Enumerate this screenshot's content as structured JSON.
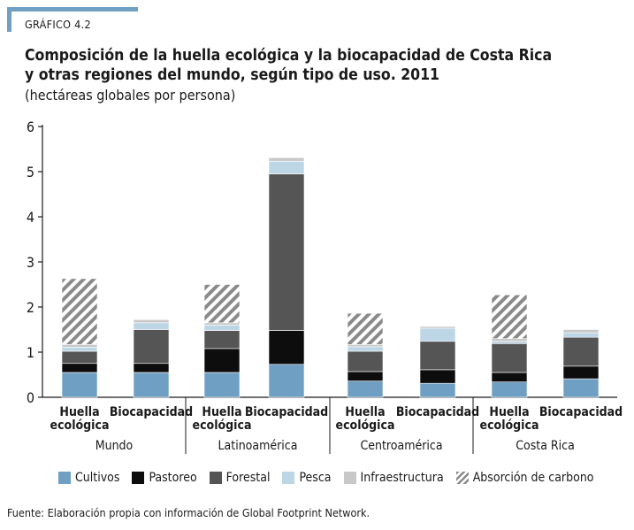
{
  "header": {
    "kicker": "GRÁFICO 4.2",
    "title_line1": "Composición de la huella ecológica y la biocapacidad de Costa Rica",
    "title_line2": "y otras regiones del mundo, según tipo de uso. 2011",
    "subtitle": "(hectáreas globales por persona)"
  },
  "colors": {
    "Cultivos": "#6f9fc3",
    "Pastoreo": "#0d0d0d",
    "Forestal": "#555555",
    "Pesca": "#bcd6e6",
    "Infraestructura": "#c8c8c8",
    "Absorción de carbono": "hatch"
  },
  "chart_data": {
    "type": "bar",
    "stacked": true,
    "title": "Composición de la huella ecológica y la biocapacidad de Costa Rica y otras regiones del mundo, según tipo de uso. 2011",
    "ylabel": "(hectáreas globales por persona)",
    "ylim": [
      0,
      6
    ],
    "yticks": [
      "0",
      "1",
      "2",
      "3",
      "4",
      "5",
      "6"
    ],
    "grid": false,
    "legend": "bottom",
    "groups": [
      "Mundo",
      "Latinoamérica",
      "Centroamérica",
      "Costa Rica"
    ],
    "bar_labels": [
      "Huella ecológica",
      "Biocapacidad"
    ],
    "categories": [
      "Mundo - Huella ecológica",
      "Mundo - Biocapacidad",
      "Latinoamérica - Huella ecológica",
      "Latinoamérica - Biocapacidad",
      "Centroamérica - Huella ecológica",
      "Centroamérica - Biocapacidad",
      "Costa Rica - Huella ecológica",
      "Costa Rica - Biocapacidad"
    ],
    "series": [
      {
        "name": "Cultivos",
        "values": [
          0.55,
          0.55,
          0.55,
          0.73,
          0.36,
          0.31,
          0.34,
          0.41
        ]
      },
      {
        "name": "Pastoreo",
        "values": [
          0.2,
          0.2,
          0.53,
          0.75,
          0.21,
          0.3,
          0.21,
          0.28
        ]
      },
      {
        "name": "Forestal",
        "values": [
          0.27,
          0.75,
          0.4,
          3.47,
          0.45,
          0.63,
          0.64,
          0.64
        ]
      },
      {
        "name": "Pesca",
        "values": [
          0.09,
          0.15,
          0.12,
          0.28,
          0.1,
          0.29,
          0.05,
          0.1
        ]
      },
      {
        "name": "Infraestructura",
        "values": [
          0.06,
          0.07,
          0.05,
          0.08,
          0.05,
          0.04,
          0.06,
          0.07
        ]
      },
      {
        "name": "Absorción de carbono",
        "values": [
          1.46,
          0,
          0.85,
          0,
          0.69,
          0,
          0.97,
          0
        ]
      }
    ]
  },
  "footer": {
    "source": "Fuente: Elaboración propia con información de Global Footprint Network."
  }
}
